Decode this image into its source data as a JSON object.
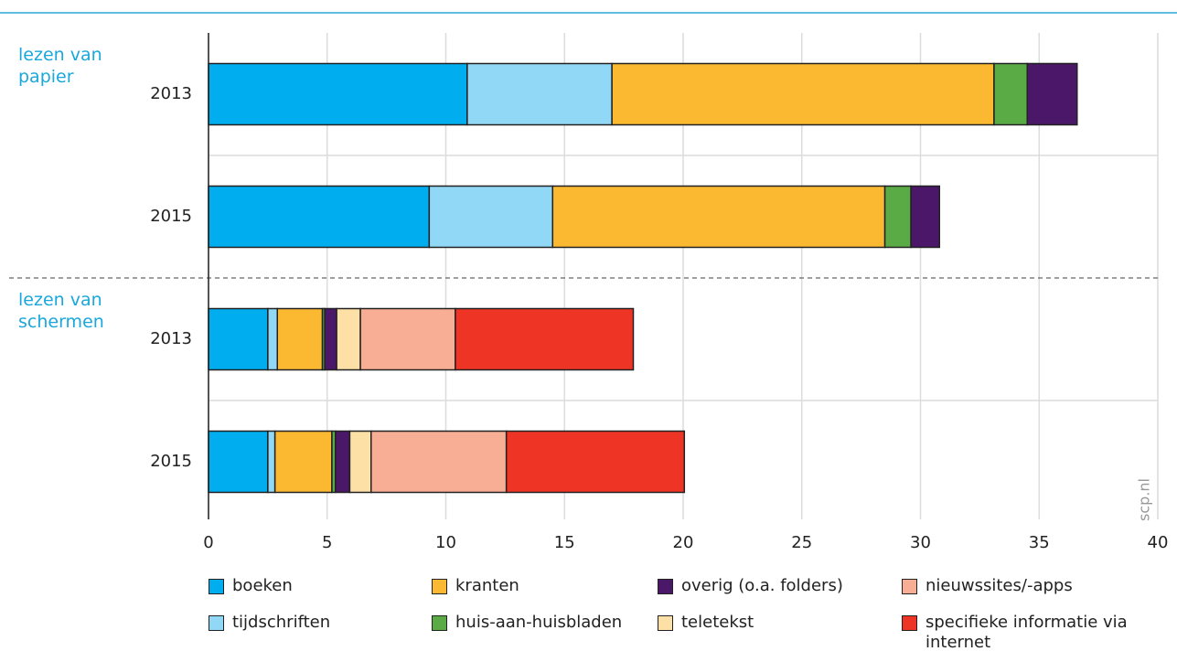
{
  "chart_data": {
    "type": "stacked-barh",
    "groups": [
      "lezen van papier",
      "lezen van schermen"
    ],
    "categories": [
      "2013",
      "2015",
      "2013",
      "2015"
    ],
    "series": [
      {
        "name": "boeken",
        "color": "#00aeef",
        "values": [
          10.9,
          9.3,
          2.5,
          2.5
        ]
      },
      {
        "name": "tijdschriften",
        "color": "#91d8f6",
        "values": [
          6.1,
          5.2,
          0.4,
          0.3
        ]
      },
      {
        "name": "kranten",
        "color": "#fbb931",
        "values": [
          16.1,
          14.0,
          1.9,
          2.4
        ]
      },
      {
        "name": "huis-aan-huisbladen",
        "color": "#5aab46",
        "values": [
          1.4,
          1.1,
          0.1,
          0.15
        ]
      },
      {
        "name": "overig (o.a. folders)",
        "color": "#4b1869",
        "values": [
          2.1,
          1.2,
          0.5,
          0.6
        ]
      },
      {
        "name": "teletekst",
        "color": "#fde0a6",
        "values": [
          0,
          0,
          1.0,
          0.9
        ]
      },
      {
        "name": "nieuwssites/-apps",
        "color": "#f7ae94",
        "values": [
          0,
          0,
          4.0,
          5.7
        ]
      },
      {
        "name": "specifieke informatie via internet",
        "color": "#ee3424",
        "values": [
          0,
          0,
          7.5,
          7.5
        ]
      }
    ],
    "xlim": [
      0,
      40
    ],
    "xticks": [
      0,
      5,
      10,
      15,
      20,
      25,
      30,
      35,
      40
    ],
    "grid": true,
    "source": "scp.nl"
  }
}
